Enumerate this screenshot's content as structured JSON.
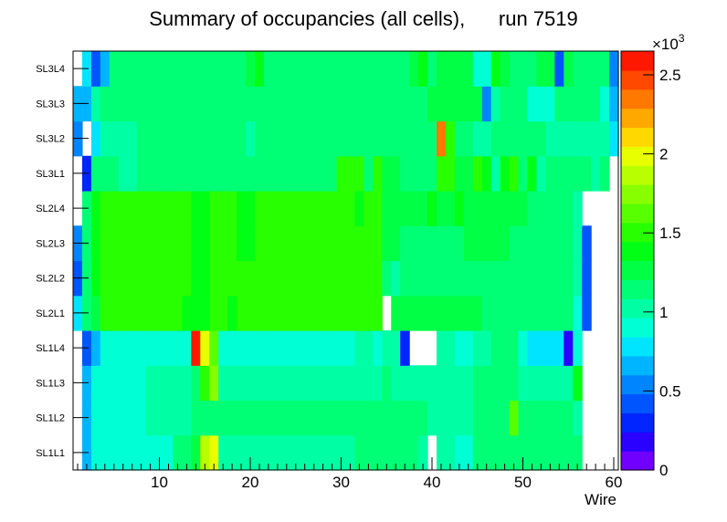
{
  "chart_data": {
    "type": "heatmap",
    "title": "Summary of occupancies (all cells),      run 7519",
    "xlabel": "Wire",
    "ylabel": "",
    "x_range": [
      0.5,
      60.5
    ],
    "x_ticks": [
      10,
      20,
      30,
      40,
      50,
      60
    ],
    "rows": [
      "SL1L1",
      "SL1L2",
      "SL1L3",
      "SL1L4",
      "SL2L1",
      "SL2L2",
      "SL2L3",
      "SL2L4",
      "SL3L1",
      "SL3L2",
      "SL3L3",
      "SL3L4"
    ],
    "colorbar": {
      "min": 0,
      "max": 2650,
      "multiplier_label": "×10",
      "multiplier_exponent": "3",
      "tick_values": [
        0,
        500,
        1000,
        1500,
        2000,
        2500
      ],
      "tick_labels": [
        "0",
        "0.5",
        "1",
        "1.5",
        "2",
        "2.5"
      ],
      "palette": [
        "#7000ff",
        "#2a00ff",
        "#0025ff",
        "#0055ff",
        "#0085ff",
        "#00b5ff",
        "#00e5ff",
        "#00ffd5",
        "#00ffa5",
        "#00ff75",
        "#00ff45",
        "#00ff15",
        "#28ff00",
        "#58ff00",
        "#88ff00",
        "#b8ff00",
        "#e8ff00",
        "#ffd800",
        "#ffa800",
        "#ff7800",
        "#ff4800",
        "#ff1800"
      ]
    },
    "z": [
      [
        null,
        650,
        850,
        950,
        950,
        950,
        950,
        950,
        950,
        950,
        950,
        1100,
        1100,
        1300,
        1900,
        2000,
        1050,
        1050,
        1050,
        1050,
        1050,
        1050,
        1050,
        1050,
        1050,
        1050,
        1050,
        1050,
        1050,
        1050,
        1050,
        1100,
        1100,
        1100,
        1100,
        1100,
        1100,
        1100,
        1050,
        null,
        1050,
        1050,
        950,
        950,
        1100,
        1100,
        1200,
        1200,
        1200,
        1200,
        1200,
        1100,
        1100,
        1100,
        1100,
        1100,
        null,
        null,
        null,
        null
      ],
      [
        null,
        650,
        850,
        950,
        950,
        950,
        950,
        950,
        1050,
        1050,
        1050,
        1050,
        1050,
        1100,
        1100,
        1200,
        1100,
        1100,
        1100,
        1100,
        1100,
        1100,
        1100,
        1100,
        1100,
        1100,
        1100,
        1100,
        1100,
        1100,
        1100,
        1100,
        1100,
        1100,
        1100,
        1100,
        1100,
        1100,
        1100,
        1050,
        1050,
        1050,
        1050,
        1050,
        1100,
        1100,
        1200,
        1200,
        1600,
        1200,
        1100,
        1100,
        1100,
        1100,
        1100,
        1050,
        null,
        null,
        null,
        null
      ],
      [
        null,
        650,
        850,
        950,
        950,
        950,
        950,
        950,
        1050,
        1050,
        1050,
        1050,
        1050,
        1150,
        1500,
        1700,
        1050,
        1050,
        1050,
        1050,
        1050,
        1050,
        1050,
        1050,
        1050,
        1050,
        1050,
        1050,
        1050,
        1050,
        1050,
        1050,
        1050,
        1050,
        1200,
        1050,
        1050,
        1050,
        1050,
        1050,
        1050,
        1050,
        1050,
        1050,
        1200,
        1200,
        1200,
        1200,
        1200,
        1050,
        1050,
        1050,
        1050,
        1050,
        1050,
        1400,
        null,
        null,
        null,
        null
      ],
      [
        null,
        450,
        700,
        850,
        850,
        850,
        850,
        950,
        950,
        950,
        950,
        950,
        950,
        2550,
        2000,
        1600,
        900,
        950,
        950,
        950,
        950,
        950,
        950,
        950,
        950,
        950,
        950,
        950,
        950,
        950,
        950,
        1050,
        1050,
        950,
        1050,
        1050,
        300,
        null,
        null,
        null,
        1000,
        1000,
        900,
        900,
        1000,
        1000,
        1100,
        1100,
        1100,
        900,
        800,
        800,
        800,
        800,
        150,
        900,
        null,
        null,
        null,
        null
      ],
      [
        800,
        1100,
        1300,
        1500,
        1500,
        1500,
        1500,
        1500,
        1500,
        1500,
        1500,
        1500,
        1400,
        1400,
        1400,
        1450,
        1450,
        1400,
        1450,
        1450,
        1500,
        1500,
        1500,
        1500,
        1500,
        1500,
        1500,
        1500,
        1500,
        1500,
        1500,
        1500,
        1500,
        1500,
        null,
        1250,
        1250,
        1250,
        1250,
        1250,
        1250,
        1250,
        1250,
        1250,
        1250,
        1200,
        1200,
        1200,
        1200,
        1200,
        1200,
        1150,
        1150,
        1150,
        1150,
        900,
        450,
        null,
        null,
        null
      ],
      [
        400,
        1100,
        1400,
        1500,
        1500,
        1500,
        1500,
        1500,
        1450,
        1450,
        1450,
        1450,
        1450,
        1350,
        1350,
        1450,
        1450,
        1450,
        1450,
        1450,
        1500,
        1500,
        1500,
        1500,
        1500,
        1500,
        1500,
        1500,
        1500,
        1500,
        1500,
        1500,
        1500,
        1500,
        1200,
        1050,
        1150,
        1150,
        1150,
        1150,
        1150,
        1150,
        1150,
        1200,
        1200,
        1200,
        1200,
        1200,
        1200,
        1200,
        1150,
        1150,
        1150,
        1150,
        1150,
        1000,
        450,
        null,
        null,
        null
      ],
      [
        600,
        1100,
        1400,
        1500,
        1500,
        1500,
        1500,
        1500,
        1450,
        1450,
        1450,
        1450,
        1450,
        1350,
        1350,
        1450,
        1450,
        1450,
        1400,
        1400,
        1450,
        1450,
        1500,
        1500,
        1500,
        1500,
        1500,
        1450,
        1500,
        1500,
        1500,
        1500,
        1500,
        1500,
        1300,
        1300,
        1200,
        1200,
        1200,
        1200,
        1200,
        1200,
        1200,
        1300,
        1300,
        1300,
        1300,
        1300,
        1200,
        1200,
        1200,
        1200,
        1200,
        1200,
        1200,
        1050,
        450,
        null,
        null,
        null
      ],
      [
        null,
        1100,
        1400,
        1500,
        1500,
        1500,
        1500,
        1500,
        1450,
        1450,
        1450,
        1450,
        1450,
        1350,
        1350,
        1450,
        1450,
        1450,
        1400,
        1400,
        1450,
        1450,
        1500,
        1500,
        1500,
        1500,
        1500,
        1500,
        1500,
        1500,
        1500,
        1400,
        1500,
        1500,
        1300,
        1300,
        1300,
        1300,
        1300,
        1350,
        1300,
        1300,
        1350,
        1300,
        1300,
        1300,
        1300,
        1300,
        1300,
        1300,
        1200,
        1200,
        1200,
        1200,
        1200,
        1000,
        null,
        null,
        null,
        null
      ],
      [
        null,
        350,
        1100,
        1100,
        1100,
        1050,
        1050,
        1100,
        1100,
        1100,
        1100,
        1100,
        1100,
        1150,
        1150,
        1150,
        1150,
        1150,
        1150,
        1100,
        1100,
        1100,
        1100,
        1100,
        1150,
        1150,
        1150,
        1150,
        1150,
        1450,
        1450,
        1450,
        1200,
        1450,
        1300,
        1300,
        1200,
        1200,
        1200,
        1200,
        1450,
        1450,
        1300,
        1300,
        1450,
        1350,
        1000,
        1350,
        1450,
        1200,
        1350,
        1000,
        1200,
        1200,
        1200,
        1200,
        1200,
        1050,
        1100,
        null
      ],
      [
        500,
        null,
        800,
        1000,
        1000,
        1000,
        1000,
        1100,
        1100,
        1100,
        1100,
        1100,
        1100,
        1100,
        1100,
        1100,
        1100,
        1100,
        1100,
        1050,
        1100,
        1100,
        1100,
        1100,
        1100,
        1100,
        1100,
        1100,
        1100,
        1100,
        1100,
        1100,
        1100,
        1100,
        1200,
        1100,
        1100,
        1100,
        1100,
        1100,
        2300,
        1450,
        1100,
        1100,
        1000,
        1000,
        1100,
        1200,
        1100,
        1100,
        1200,
        1200,
        1050,
        1050,
        1050,
        1050,
        1050,
        1050,
        1050,
        800
      ],
      [
        700,
        700,
        1000,
        1100,
        1100,
        1100,
        1100,
        1100,
        1100,
        1100,
        1100,
        1100,
        1100,
        1100,
        1100,
        1100,
        1100,
        1100,
        1100,
        1100,
        1100,
        1100,
        1100,
        1100,
        1100,
        1100,
        1100,
        1100,
        1100,
        1100,
        1100,
        1150,
        1150,
        1150,
        1150,
        1150,
        1150,
        1150,
        1150,
        1300,
        1300,
        1300,
        1300,
        1300,
        1250,
        600,
        1000,
        1100,
        1200,
        1200,
        950,
        950,
        950,
        1100,
        1100,
        1200,
        1200,
        1200,
        950,
        700
      ],
      [
        null,
        800,
        450,
        650,
        1100,
        1100,
        1100,
        1150,
        1150,
        1150,
        1150,
        1150,
        1150,
        1150,
        1150,
        1150,
        1150,
        1150,
        1150,
        1250,
        1400,
        1150,
        1150,
        1150,
        1150,
        1150,
        1150,
        1150,
        1150,
        1150,
        1150,
        1200,
        1200,
        1200,
        1200,
        1200,
        1200,
        1300,
        1400,
        1200,
        1300,
        1300,
        1300,
        1300,
        950,
        950,
        1400,
        1300,
        1100,
        1100,
        1100,
        1300,
        1300,
        450,
        1300,
        1100,
        1100,
        1100,
        1100,
        600
      ]
    ]
  }
}
